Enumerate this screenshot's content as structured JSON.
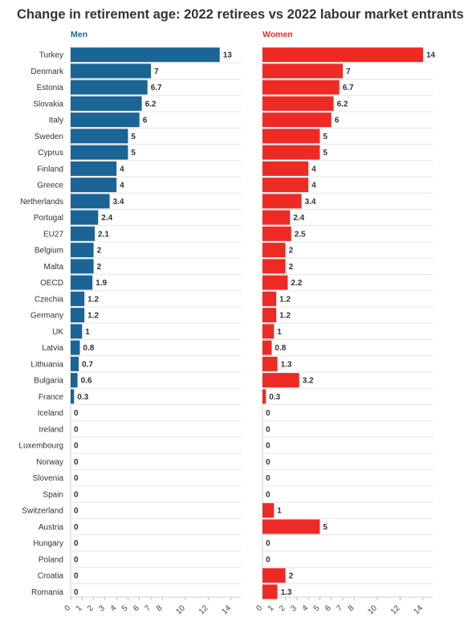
{
  "chart_data": {
    "type": "bar",
    "title": "Change in retirement age: 2022 retirees vs 2022 labour market entrants",
    "categories": [
      "Turkey",
      "Denmark",
      "Estonia",
      "Slovakia",
      "Italy",
      "Sweden",
      "Cyprus",
      "Finland",
      "Greece",
      "Netherlands",
      "Portugal",
      "EU27",
      "Belgium",
      "Malta",
      "OECD",
      "Czechia",
      "Germany",
      "UK",
      "Latvia",
      "Lithuania",
      "Bulgaria",
      "France",
      "Iceland",
      "Ireland",
      "Luxembourg",
      "Norway",
      "Slovenia",
      "Spain",
      "Switzerland",
      "Austria",
      "Hungary",
      "Poland",
      "Croatia",
      "Romania"
    ],
    "series": [
      {
        "name": "Men",
        "color": "#1a6496",
        "values": [
          13,
          7,
          6.7,
          6.2,
          6,
          5,
          5,
          4,
          4,
          3.4,
          2.4,
          2.1,
          2,
          2,
          1.9,
          1.2,
          1.2,
          1,
          0.8,
          0.7,
          0.6,
          0.3,
          0,
          0,
          0,
          0,
          0,
          0,
          0,
          0,
          0,
          0,
          0,
          0
        ]
      },
      {
        "name": "Women",
        "color": "#ee2a24",
        "values": [
          14,
          7,
          6.7,
          6.2,
          6,
          5,
          5,
          4,
          4,
          3.4,
          2.4,
          2.5,
          2,
          2,
          2.2,
          1.2,
          1.2,
          1,
          0.8,
          1.3,
          3.2,
          0.3,
          0,
          0,
          0,
          0,
          0,
          0,
          1,
          5,
          0,
          0,
          2,
          1.3
        ]
      }
    ],
    "xlim": [
      0,
      14
    ],
    "xticks": [
      0,
      1,
      2,
      3,
      4,
      5,
      6,
      7,
      8,
      10,
      12,
      14
    ],
    "grid": true
  }
}
